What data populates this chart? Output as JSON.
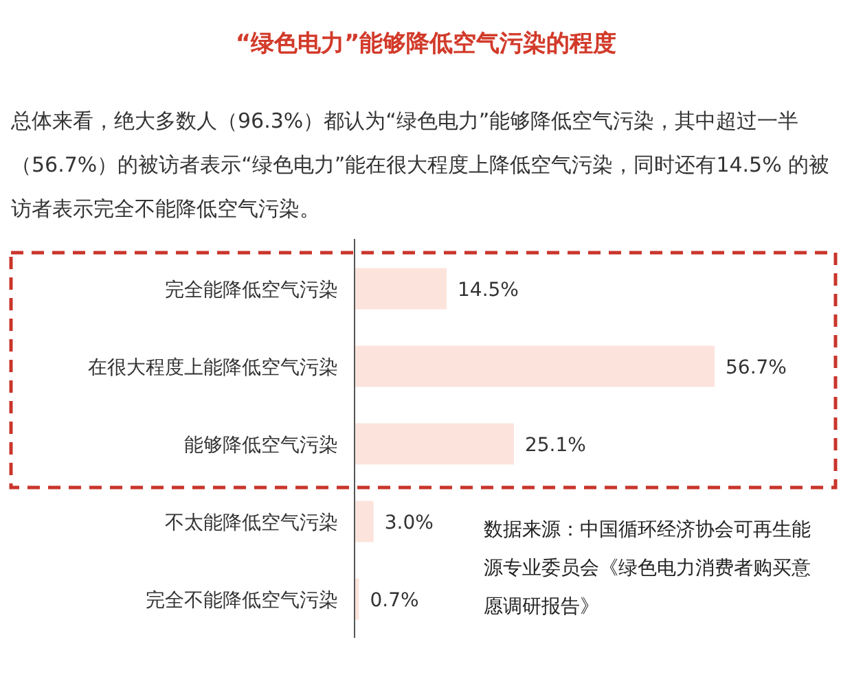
{
  "chart_data": {
    "type": "bar",
    "orientation": "horizontal",
    "title": "“绿色电力”能够降低空气污染的程度",
    "subtitle": "总体来看，绝大多数人（96.3%）都认为“绿色电力”能够降低空气污染，其中超过一半（56.7%）的被访者表示“绿色电力”能在很大程度上降低空气污染，同时还有14.5% 的被访者表示完全不能降低空气污染。",
    "categories": [
      "完全能降低空气污染",
      "在很大程度上能降低空气污染",
      "能够降低空气污染",
      "不太能降低空气污染",
      "完全不能降低空气污染"
    ],
    "values": [
      14.5,
      56.7,
      25.1,
      3.0,
      0.7
    ],
    "value_labels": [
      "14.5%",
      "56.7%",
      "25.1%",
      "3.0%",
      "0.7%"
    ],
    "color": "#fce4dc",
    "annotations": [
      "数据来源：中国循环经济协会可再生能源专业委员会《绿色电力消费者购买意愿调研报告》"
    ]
  }
}
